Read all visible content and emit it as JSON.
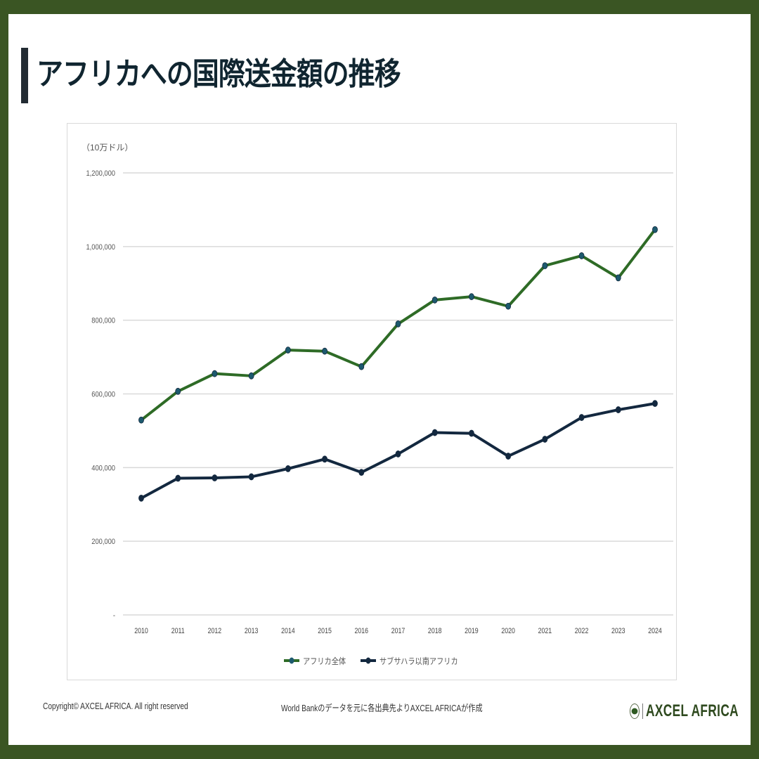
{
  "title": "アフリカへの国際送金額の推移",
  "footer": {
    "copyright": "Copyright©  AXCEL AFRICA. All right reserved",
    "source": "World Bankのデータを元に各出典先よりAXCEL AFRICAが作成",
    "logo_text": "AXCEL AFRICA"
  },
  "colors": {
    "border": "#3a5523",
    "series_africa": "#2e6b26",
    "series_ssa": "#13283f",
    "marker": "#1d5a6e",
    "grid": "#d9d9d9"
  },
  "chart_data": {
    "type": "line",
    "title": "アフリカへの国際送金額の推移",
    "unit_label": "（10万ドル）",
    "xlabel": "",
    "ylabel": "（10万ドル）",
    "ylim": [
      0,
      1200000
    ],
    "yticks": [
      0,
      200000,
      400000,
      600000,
      800000,
      1000000,
      1200000
    ],
    "ytick_labels": [
      "-",
      "200,000",
      "400,000",
      "600,000",
      "800,000",
      "1,000,000",
      "1,200,000"
    ],
    "grid": true,
    "legend_position": "bottom",
    "categories": [
      "2010",
      "2011",
      "2012",
      "2013",
      "2014",
      "2015",
      "2016",
      "2017",
      "2018",
      "2019",
      "2020",
      "2021",
      "2022",
      "2023",
      "2024"
    ],
    "series": [
      {
        "name": "アフリカ全体",
        "color": "#2e6b26",
        "values": [
          529000,
          607000,
          655000,
          649000,
          719000,
          716000,
          674000,
          790000,
          855000,
          864000,
          838000,
          948000,
          975000,
          915000,
          1046000
        ]
      },
      {
        "name": "サブサハラ以南アフリカ",
        "color": "#13283f",
        "values": [
          317000,
          371000,
          372000,
          375000,
          397000,
          423000,
          387000,
          437000,
          495000,
          493000,
          431000,
          477000,
          536000,
          557000,
          574000
        ]
      }
    ]
  }
}
